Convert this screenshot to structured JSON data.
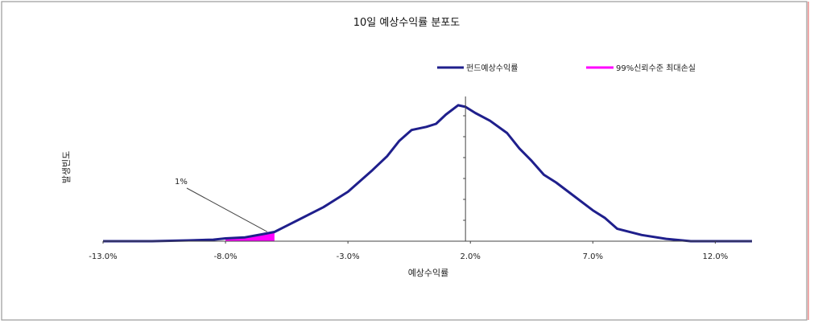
{
  "chart_data": {
    "type": "line",
    "title": "10일 예상수익률 분포도",
    "xlabel": "예상수익률",
    "ylabel": "발생빈도",
    "xlim": [
      -13.0,
      13.5
    ],
    "ylim": [
      0,
      1.0
    ],
    "x_ticks": [
      -13.0,
      -8.0,
      -3.0,
      2.0,
      7.0,
      12.0
    ],
    "x_tick_labels": [
      "-13.0%",
      "-8.0%",
      "-3.0%",
      "2.0%",
      "7.0%",
      "12.0%"
    ],
    "grid": false,
    "legend_position": "top-right",
    "series": [
      {
        "name": "펀드예상수익률",
        "color": "#1f1f8c",
        "points": [
          [
            -13.0,
            0.0
          ],
          [
            -11.0,
            0.0
          ],
          [
            -9.5,
            0.005
          ],
          [
            -8.5,
            0.01
          ],
          [
            -8.0,
            0.018
          ],
          [
            -7.2,
            0.025
          ],
          [
            -6.5,
            0.045
          ],
          [
            -6.0,
            0.06
          ],
          [
            -5.5,
            0.1
          ],
          [
            -5.0,
            0.14
          ],
          [
            -4.0,
            0.22
          ],
          [
            -3.0,
            0.32
          ],
          [
            -2.0,
            0.46
          ],
          [
            -1.4,
            0.55
          ],
          [
            -0.9,
            0.65
          ],
          [
            -0.4,
            0.72
          ],
          [
            0.2,
            0.74
          ],
          [
            0.6,
            0.76
          ],
          [
            1.0,
            0.82
          ],
          [
            1.5,
            0.88
          ],
          [
            1.8,
            0.87
          ],
          [
            2.2,
            0.83
          ],
          [
            2.8,
            0.78
          ],
          [
            3.5,
            0.7
          ],
          [
            4.0,
            0.6
          ],
          [
            4.5,
            0.52
          ],
          [
            5.0,
            0.43
          ],
          [
            5.5,
            0.38
          ],
          [
            6.0,
            0.32
          ],
          [
            7.0,
            0.2
          ],
          [
            7.5,
            0.15
          ],
          [
            8.0,
            0.08
          ],
          [
            9.0,
            0.04
          ],
          [
            10.0,
            0.015
          ],
          [
            11.0,
            0.0
          ],
          [
            13.5,
            0.0
          ]
        ]
      },
      {
        "name": "99%신뢰수준 최대손실",
        "color": "#ff00ff",
        "shade_from_x": -8.0,
        "shade_to_x": -6.0
      }
    ],
    "reference_line_x": 1.8,
    "annotations": [
      {
        "text": "1%",
        "points_to_x": -6.3
      }
    ]
  }
}
